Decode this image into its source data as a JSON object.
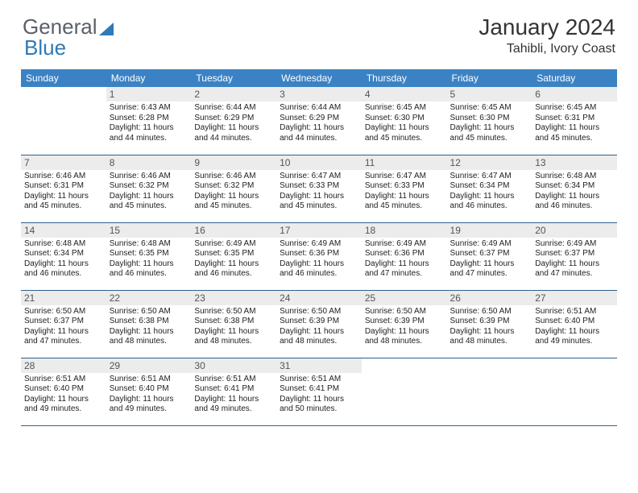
{
  "logo": {
    "part1": "General",
    "part2": "Blue"
  },
  "title": "January 2024",
  "location": "Tahibli, Ivory Coast",
  "colors": {
    "header_bg": "#3b82c4",
    "header_text": "#ffffff",
    "daynum_bg": "#ececec",
    "daynum_text": "#555555",
    "border": "#2f5f8f",
    "logo_gray": "#5a6068",
    "logo_blue": "#2f79b8"
  },
  "weekdays": [
    "Sunday",
    "Monday",
    "Tuesday",
    "Wednesday",
    "Thursday",
    "Friday",
    "Saturday"
  ],
  "weeks": [
    [
      {
        "n": "",
        "sr": "",
        "ss": "",
        "dl": "",
        "empty": true
      },
      {
        "n": "1",
        "sr": "Sunrise: 6:43 AM",
        "ss": "Sunset: 6:28 PM",
        "dl": "Daylight: 11 hours and 44 minutes."
      },
      {
        "n": "2",
        "sr": "Sunrise: 6:44 AM",
        "ss": "Sunset: 6:29 PM",
        "dl": "Daylight: 11 hours and 44 minutes."
      },
      {
        "n": "3",
        "sr": "Sunrise: 6:44 AM",
        "ss": "Sunset: 6:29 PM",
        "dl": "Daylight: 11 hours and 44 minutes."
      },
      {
        "n": "4",
        "sr": "Sunrise: 6:45 AM",
        "ss": "Sunset: 6:30 PM",
        "dl": "Daylight: 11 hours and 45 minutes."
      },
      {
        "n": "5",
        "sr": "Sunrise: 6:45 AM",
        "ss": "Sunset: 6:30 PM",
        "dl": "Daylight: 11 hours and 45 minutes."
      },
      {
        "n": "6",
        "sr": "Sunrise: 6:45 AM",
        "ss": "Sunset: 6:31 PM",
        "dl": "Daylight: 11 hours and 45 minutes."
      }
    ],
    [
      {
        "n": "7",
        "sr": "Sunrise: 6:46 AM",
        "ss": "Sunset: 6:31 PM",
        "dl": "Daylight: 11 hours and 45 minutes."
      },
      {
        "n": "8",
        "sr": "Sunrise: 6:46 AM",
        "ss": "Sunset: 6:32 PM",
        "dl": "Daylight: 11 hours and 45 minutes."
      },
      {
        "n": "9",
        "sr": "Sunrise: 6:46 AM",
        "ss": "Sunset: 6:32 PM",
        "dl": "Daylight: 11 hours and 45 minutes."
      },
      {
        "n": "10",
        "sr": "Sunrise: 6:47 AM",
        "ss": "Sunset: 6:33 PM",
        "dl": "Daylight: 11 hours and 45 minutes."
      },
      {
        "n": "11",
        "sr": "Sunrise: 6:47 AM",
        "ss": "Sunset: 6:33 PM",
        "dl": "Daylight: 11 hours and 45 minutes."
      },
      {
        "n": "12",
        "sr": "Sunrise: 6:47 AM",
        "ss": "Sunset: 6:34 PM",
        "dl": "Daylight: 11 hours and 46 minutes."
      },
      {
        "n": "13",
        "sr": "Sunrise: 6:48 AM",
        "ss": "Sunset: 6:34 PM",
        "dl": "Daylight: 11 hours and 46 minutes."
      }
    ],
    [
      {
        "n": "14",
        "sr": "Sunrise: 6:48 AM",
        "ss": "Sunset: 6:34 PM",
        "dl": "Daylight: 11 hours and 46 minutes."
      },
      {
        "n": "15",
        "sr": "Sunrise: 6:48 AM",
        "ss": "Sunset: 6:35 PM",
        "dl": "Daylight: 11 hours and 46 minutes."
      },
      {
        "n": "16",
        "sr": "Sunrise: 6:49 AM",
        "ss": "Sunset: 6:35 PM",
        "dl": "Daylight: 11 hours and 46 minutes."
      },
      {
        "n": "17",
        "sr": "Sunrise: 6:49 AM",
        "ss": "Sunset: 6:36 PM",
        "dl": "Daylight: 11 hours and 46 minutes."
      },
      {
        "n": "18",
        "sr": "Sunrise: 6:49 AM",
        "ss": "Sunset: 6:36 PM",
        "dl": "Daylight: 11 hours and 47 minutes."
      },
      {
        "n": "19",
        "sr": "Sunrise: 6:49 AM",
        "ss": "Sunset: 6:37 PM",
        "dl": "Daylight: 11 hours and 47 minutes."
      },
      {
        "n": "20",
        "sr": "Sunrise: 6:49 AM",
        "ss": "Sunset: 6:37 PM",
        "dl": "Daylight: 11 hours and 47 minutes."
      }
    ],
    [
      {
        "n": "21",
        "sr": "Sunrise: 6:50 AM",
        "ss": "Sunset: 6:37 PM",
        "dl": "Daylight: 11 hours and 47 minutes."
      },
      {
        "n": "22",
        "sr": "Sunrise: 6:50 AM",
        "ss": "Sunset: 6:38 PM",
        "dl": "Daylight: 11 hours and 48 minutes."
      },
      {
        "n": "23",
        "sr": "Sunrise: 6:50 AM",
        "ss": "Sunset: 6:38 PM",
        "dl": "Daylight: 11 hours and 48 minutes."
      },
      {
        "n": "24",
        "sr": "Sunrise: 6:50 AM",
        "ss": "Sunset: 6:39 PM",
        "dl": "Daylight: 11 hours and 48 minutes."
      },
      {
        "n": "25",
        "sr": "Sunrise: 6:50 AM",
        "ss": "Sunset: 6:39 PM",
        "dl": "Daylight: 11 hours and 48 minutes."
      },
      {
        "n": "26",
        "sr": "Sunrise: 6:50 AM",
        "ss": "Sunset: 6:39 PM",
        "dl": "Daylight: 11 hours and 48 minutes."
      },
      {
        "n": "27",
        "sr": "Sunrise: 6:51 AM",
        "ss": "Sunset: 6:40 PM",
        "dl": "Daylight: 11 hours and 49 minutes."
      }
    ],
    [
      {
        "n": "28",
        "sr": "Sunrise: 6:51 AM",
        "ss": "Sunset: 6:40 PM",
        "dl": "Daylight: 11 hours and 49 minutes."
      },
      {
        "n": "29",
        "sr": "Sunrise: 6:51 AM",
        "ss": "Sunset: 6:40 PM",
        "dl": "Daylight: 11 hours and 49 minutes."
      },
      {
        "n": "30",
        "sr": "Sunrise: 6:51 AM",
        "ss": "Sunset: 6:41 PM",
        "dl": "Daylight: 11 hours and 49 minutes."
      },
      {
        "n": "31",
        "sr": "Sunrise: 6:51 AM",
        "ss": "Sunset: 6:41 PM",
        "dl": "Daylight: 11 hours and 50 minutes."
      },
      {
        "n": "",
        "sr": "",
        "ss": "",
        "dl": "",
        "empty": true
      },
      {
        "n": "",
        "sr": "",
        "ss": "",
        "dl": "",
        "empty": true
      },
      {
        "n": "",
        "sr": "",
        "ss": "",
        "dl": "",
        "empty": true
      }
    ]
  ]
}
